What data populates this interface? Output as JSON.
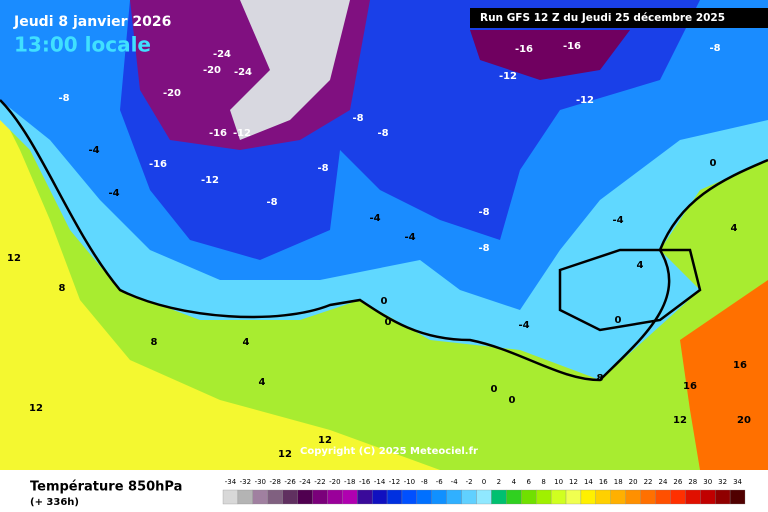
{
  "header": {
    "date": "Jeudi 8 janvier 2026",
    "time": "13:00 locale",
    "run": "Run GFS 12 Z du Jeudi 25 décembre 2025"
  },
  "footer": {
    "title": "Température 850hPa",
    "lead": "(+ 336h)",
    "copyright": "Copyright (C) 2025 Meteociel.fr"
  },
  "legend": {
    "ticks": [
      -34,
      -32,
      -30,
      -28,
      -26,
      -24,
      -22,
      -20,
      -18,
      -16,
      -14,
      -12,
      -10,
      -8,
      -6,
      -4,
      -2,
      0,
      2,
      4,
      6,
      8,
      10,
      12,
      14,
      16,
      18,
      20,
      22,
      24,
      26,
      28,
      30,
      32,
      34
    ],
    "colors": [
      "#d8d8d8",
      "#b4b4b4",
      "#a080a0",
      "#806080",
      "#603060",
      "#500050",
      "#7a007a",
      "#9a009a",
      "#b000b0",
      "#3a0a9a",
      "#1010c0",
      "#0030e0",
      "#0050ff",
      "#0070ff",
      "#1090ff",
      "#30b0ff",
      "#60d0ff",
      "#90e8ff",
      "#00c070",
      "#30d020",
      "#70e000",
      "#a0f000",
      "#d0ff20",
      "#f0ff50",
      "#fff000",
      "#ffd000",
      "#ffb000",
      "#ff9000",
      "#ff7000",
      "#ff5000",
      "#ff3000",
      "#e01000",
      "#c00000",
      "#900000",
      "#500000"
    ]
  },
  "map": {
    "labels": [
      -24,
      -20,
      -24,
      -20,
      -16,
      -12,
      -16,
      -12,
      -8,
      -8,
      -4,
      -4,
      -8,
      -8,
      -8,
      -4,
      -4,
      -8,
      -8,
      -16,
      -16,
      -12,
      -12,
      -8,
      0,
      4,
      -4,
      4,
      0,
      0,
      0,
      8,
      12,
      4,
      4,
      8,
      12,
      12,
      12,
      16,
      16,
      20,
      0,
      8,
      12,
      -4,
      0
    ]
  }
}
